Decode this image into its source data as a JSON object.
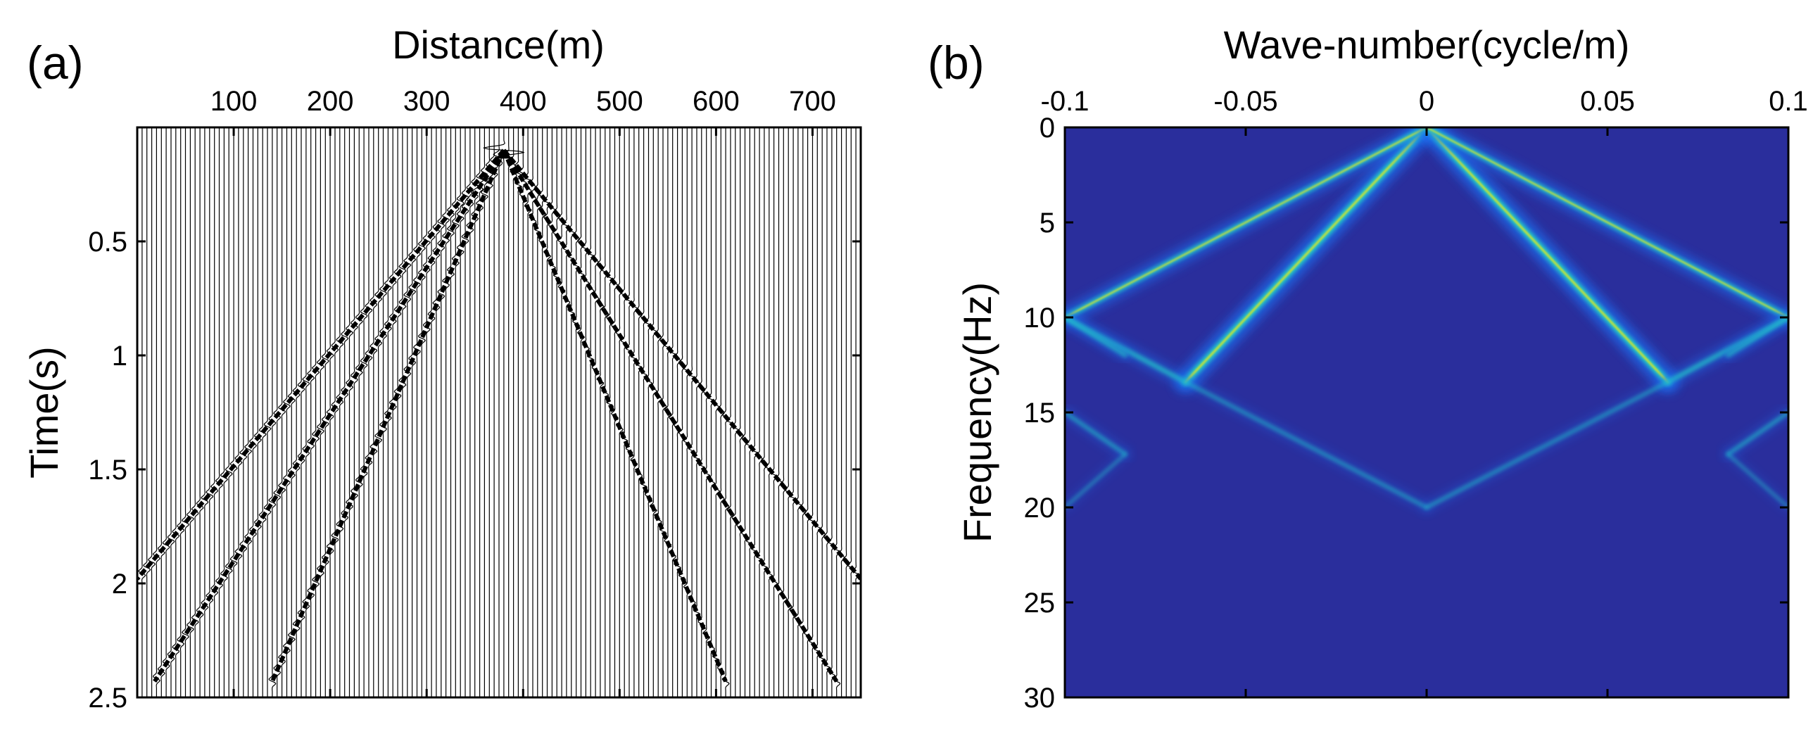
{
  "figure": {
    "panels": [
      {
        "panel_label": "(a)",
        "kind": "seismic-wiggle-section",
        "x_axis": {
          "label": "Distance(m)",
          "position": "top",
          "range": [
            0,
            750
          ],
          "ticks": [
            100,
            200,
            300,
            400,
            500,
            600,
            700
          ],
          "tick_labels": [
            "100",
            "200",
            "300",
            "400",
            "500",
            "600",
            "700"
          ]
        },
        "y_axis": {
          "label": "Time(s)",
          "reversed": true,
          "range": [
            0,
            2.5
          ],
          "ticks": [
            0.5,
            1,
            1.5,
            2,
            2.5
          ],
          "tick_labels": [
            "0.5",
            "1",
            "1.5",
            "2",
            "2.5"
          ]
        },
        "trace_spacing_m": 5,
        "events": [
          {
            "name": "left-outer",
            "source_x": 380,
            "t0": 0.1,
            "end": [
              0,
              1.98
            ]
          },
          {
            "name": "left-middle",
            "source_x": 380,
            "t0": 0.1,
            "end": [
              18,
              2.43
            ]
          },
          {
            "name": "left-inner",
            "source_x": 380,
            "t0": 0.1,
            "end": [
              140,
              2.43
            ]
          },
          {
            "name": "right-inner",
            "source_x": 380,
            "t0": 0.1,
            "end": [
              610,
              2.43
            ]
          },
          {
            "name": "right-middle",
            "source_x": 380,
            "t0": 0.1,
            "end": [
              725,
              2.43
            ]
          },
          {
            "name": "right-outer",
            "source_x": 380,
            "t0": 0.1,
            "end": [
              750,
              1.98
            ]
          }
        ]
      },
      {
        "panel_label": "(b)",
        "kind": "fk-spectrum",
        "x_axis": {
          "label": "Wave-number(cycle/m)",
          "position": "top",
          "range": [
            -0.1,
            0.1
          ],
          "ticks": [
            -0.1,
            -0.05,
            0,
            0.05,
            0.1
          ],
          "tick_labels": [
            "-0.1",
            "-0.05",
            "0",
            "0.05",
            "0.1"
          ]
        },
        "y_axis": {
          "label": "Frequency(Hz)",
          "reversed": true,
          "range": [
            0,
            30
          ],
          "ticks": [
            0,
            5,
            10,
            15,
            20,
            25,
            30
          ],
          "tick_labels": [
            "0",
            "5",
            "10",
            "15",
            "20",
            "25",
            "30"
          ]
        },
        "background_color": "#2a2e9c",
        "energy_lines": [
          {
            "name": "primary-left",
            "from": [
              0,
              0
            ],
            "to": [
              -0.0667,
              13.4
            ],
            "intensity": 1.0
          },
          {
            "name": "primary-right",
            "from": [
              0,
              0
            ],
            "to": [
              0.0667,
              13.4
            ],
            "intensity": 1.0
          },
          {
            "name": "secondary-left",
            "from": [
              0,
              0
            ],
            "to": [
              -0.1,
              10
            ],
            "intensity": 0.75
          },
          {
            "name": "secondary-right",
            "from": [
              0,
              0
            ],
            "to": [
              0.1,
              10
            ],
            "intensity": 0.75
          },
          {
            "name": "alias-left-1",
            "from": [
              -0.1,
              10
            ],
            "to": [
              -0.0667,
              13.4
            ],
            "intensity": 0.55
          },
          {
            "name": "alias-right-1",
            "from": [
              0.1,
              10
            ],
            "to": [
              0.0667,
              13.4
            ],
            "intensity": 0.55
          },
          {
            "name": "alias-left-2",
            "from": [
              -0.0667,
              13.4
            ],
            "to": [
              0,
              20
            ],
            "intensity": 0.3
          },
          {
            "name": "alias-right-2",
            "from": [
              0.0667,
              13.4
            ],
            "to": [
              0,
              20
            ],
            "intensity": 0.3
          },
          {
            "name": "alias-left-3",
            "from": [
              -0.1,
              15
            ],
            "to": [
              -0.0833,
              17.2
            ],
            "intensity": 0.35
          },
          {
            "name": "alias-right-3",
            "from": [
              0.1,
              15
            ],
            "to": [
              0.0833,
              17.2
            ],
            "intensity": 0.35
          },
          {
            "name": "alias-left-4",
            "from": [
              -0.1,
              10
            ],
            "to": [
              -0.0833,
              12
            ],
            "intensity": 0.4
          },
          {
            "name": "alias-right-4",
            "from": [
              0.1,
              10
            ],
            "to": [
              0.0833,
              12
            ],
            "intensity": 0.4
          },
          {
            "name": "alias-left-5",
            "from": [
              -0.0833,
              17.2
            ],
            "to": [
              -0.1,
              20
            ],
            "intensity": 0.2
          },
          {
            "name": "alias-right-5",
            "from": [
              0.0833,
              17.2
            ],
            "to": [
              0.1,
              20
            ],
            "intensity": 0.2
          }
        ],
        "colormap": [
          "#2a2e9c",
          "#1f6ff2",
          "#21c4c7",
          "#d7e42a"
        ]
      }
    ]
  },
  "chart_data": [
    {
      "type": "line",
      "title": "(a)",
      "xlabel": "Distance(m)",
      "ylabel": "Time(s)",
      "xlim": [
        0,
        750
      ],
      "ylim": [
        2.5,
        0
      ],
      "series": [
        {
          "name": "left-outer",
          "x": [
            380,
            0
          ],
          "y": [
            0.1,
            1.98
          ]
        },
        {
          "name": "left-middle",
          "x": [
            380,
            18
          ],
          "y": [
            0.1,
            2.43
          ]
        },
        {
          "name": "left-inner",
          "x": [
            380,
            140
          ],
          "y": [
            0.1,
            2.43
          ]
        },
        {
          "name": "right-inner",
          "x": [
            380,
            610
          ],
          "y": [
            0.1,
            2.43
          ]
        },
        {
          "name": "right-middle",
          "x": [
            380,
            725
          ],
          "y": [
            0.1,
            2.43
          ]
        },
        {
          "name": "right-outer",
          "x": [
            380,
            750
          ],
          "y": [
            0.1,
            1.98
          ]
        }
      ]
    },
    {
      "type": "heatmap",
      "title": "(b)",
      "xlabel": "Wave-number(cycle/m)",
      "ylabel": "Frequency(Hz)",
      "xlim": [
        -0.1,
        0.1
      ],
      "ylim": [
        30,
        0
      ],
      "series": [
        {
          "name": "primary-left",
          "x": [
            0,
            -0.0667
          ],
          "y": [
            0,
            13.4
          ]
        },
        {
          "name": "primary-right",
          "x": [
            0,
            0.0667
          ],
          "y": [
            0,
            13.4
          ]
        },
        {
          "name": "secondary-left",
          "x": [
            0,
            -0.1
          ],
          "y": [
            0,
            10
          ]
        },
        {
          "name": "secondary-right",
          "x": [
            0,
            0.1
          ],
          "y": [
            0,
            10
          ]
        }
      ]
    }
  ]
}
